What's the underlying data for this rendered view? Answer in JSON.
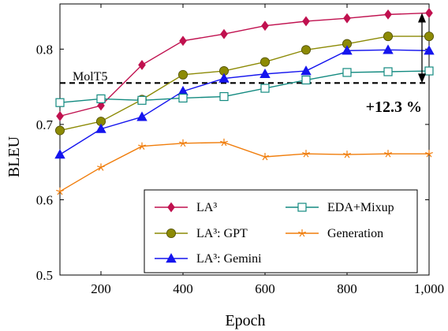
{
  "chart_data": {
    "type": "line",
    "xlabel": "Epoch",
    "ylabel": "BLEU",
    "xlim": [
      100,
      1000
    ],
    "ylim": [
      0.5,
      0.86
    ],
    "x_ticks": [
      200,
      400,
      600,
      800,
      1000
    ],
    "x_tick_labels": [
      "200",
      "400",
      "600",
      "800",
      "1,000"
    ],
    "y_ticks": [
      0.5,
      0.6,
      0.7,
      0.8
    ],
    "y_tick_labels": [
      "0.5",
      "0.6",
      "0.7",
      "0.8"
    ],
    "grid": false,
    "legend_position": "bottom-right",
    "x": [
      100,
      200,
      300,
      400,
      500,
      600,
      700,
      800,
      900,
      1000
    ],
    "series": [
      {
        "name": "LA³",
        "color": "#c0114f",
        "marker": "diamond",
        "values": [
          0.711,
          0.725,
          0.779,
          0.811,
          0.82,
          0.831,
          0.837,
          0.841,
          0.846,
          0.848
        ]
      },
      {
        "name": "LA³: GPT",
        "color": "#8c8a05",
        "marker": "circle",
        "values": [
          0.692,
          0.704,
          0.733,
          0.766,
          0.771,
          0.783,
          0.799,
          0.807,
          0.817,
          0.817
        ]
      },
      {
        "name": "LA³: Gemini",
        "color": "#1515ee",
        "marker": "triangle",
        "values": [
          0.66,
          0.694,
          0.71,
          0.744,
          0.761,
          0.767,
          0.771,
          0.798,
          0.799,
          0.798
        ]
      },
      {
        "name": "EDA+Mixup",
        "color": "#138a80",
        "marker": "square",
        "values": [
          0.729,
          0.734,
          0.732,
          0.735,
          0.737,
          0.748,
          0.759,
          0.769,
          0.77,
          0.771
        ]
      },
      {
        "name": "Generation",
        "color": "#f07d0b",
        "marker": "star",
        "values": [
          0.611,
          0.643,
          0.671,
          0.675,
          0.676,
          0.657,
          0.661,
          0.66,
          0.661,
          0.661
        ]
      }
    ],
    "baseline": {
      "label": "MolT5",
      "value": 0.755
    },
    "annotation": {
      "text": "+12.3 %",
      "color": "#b0124c"
    }
  }
}
